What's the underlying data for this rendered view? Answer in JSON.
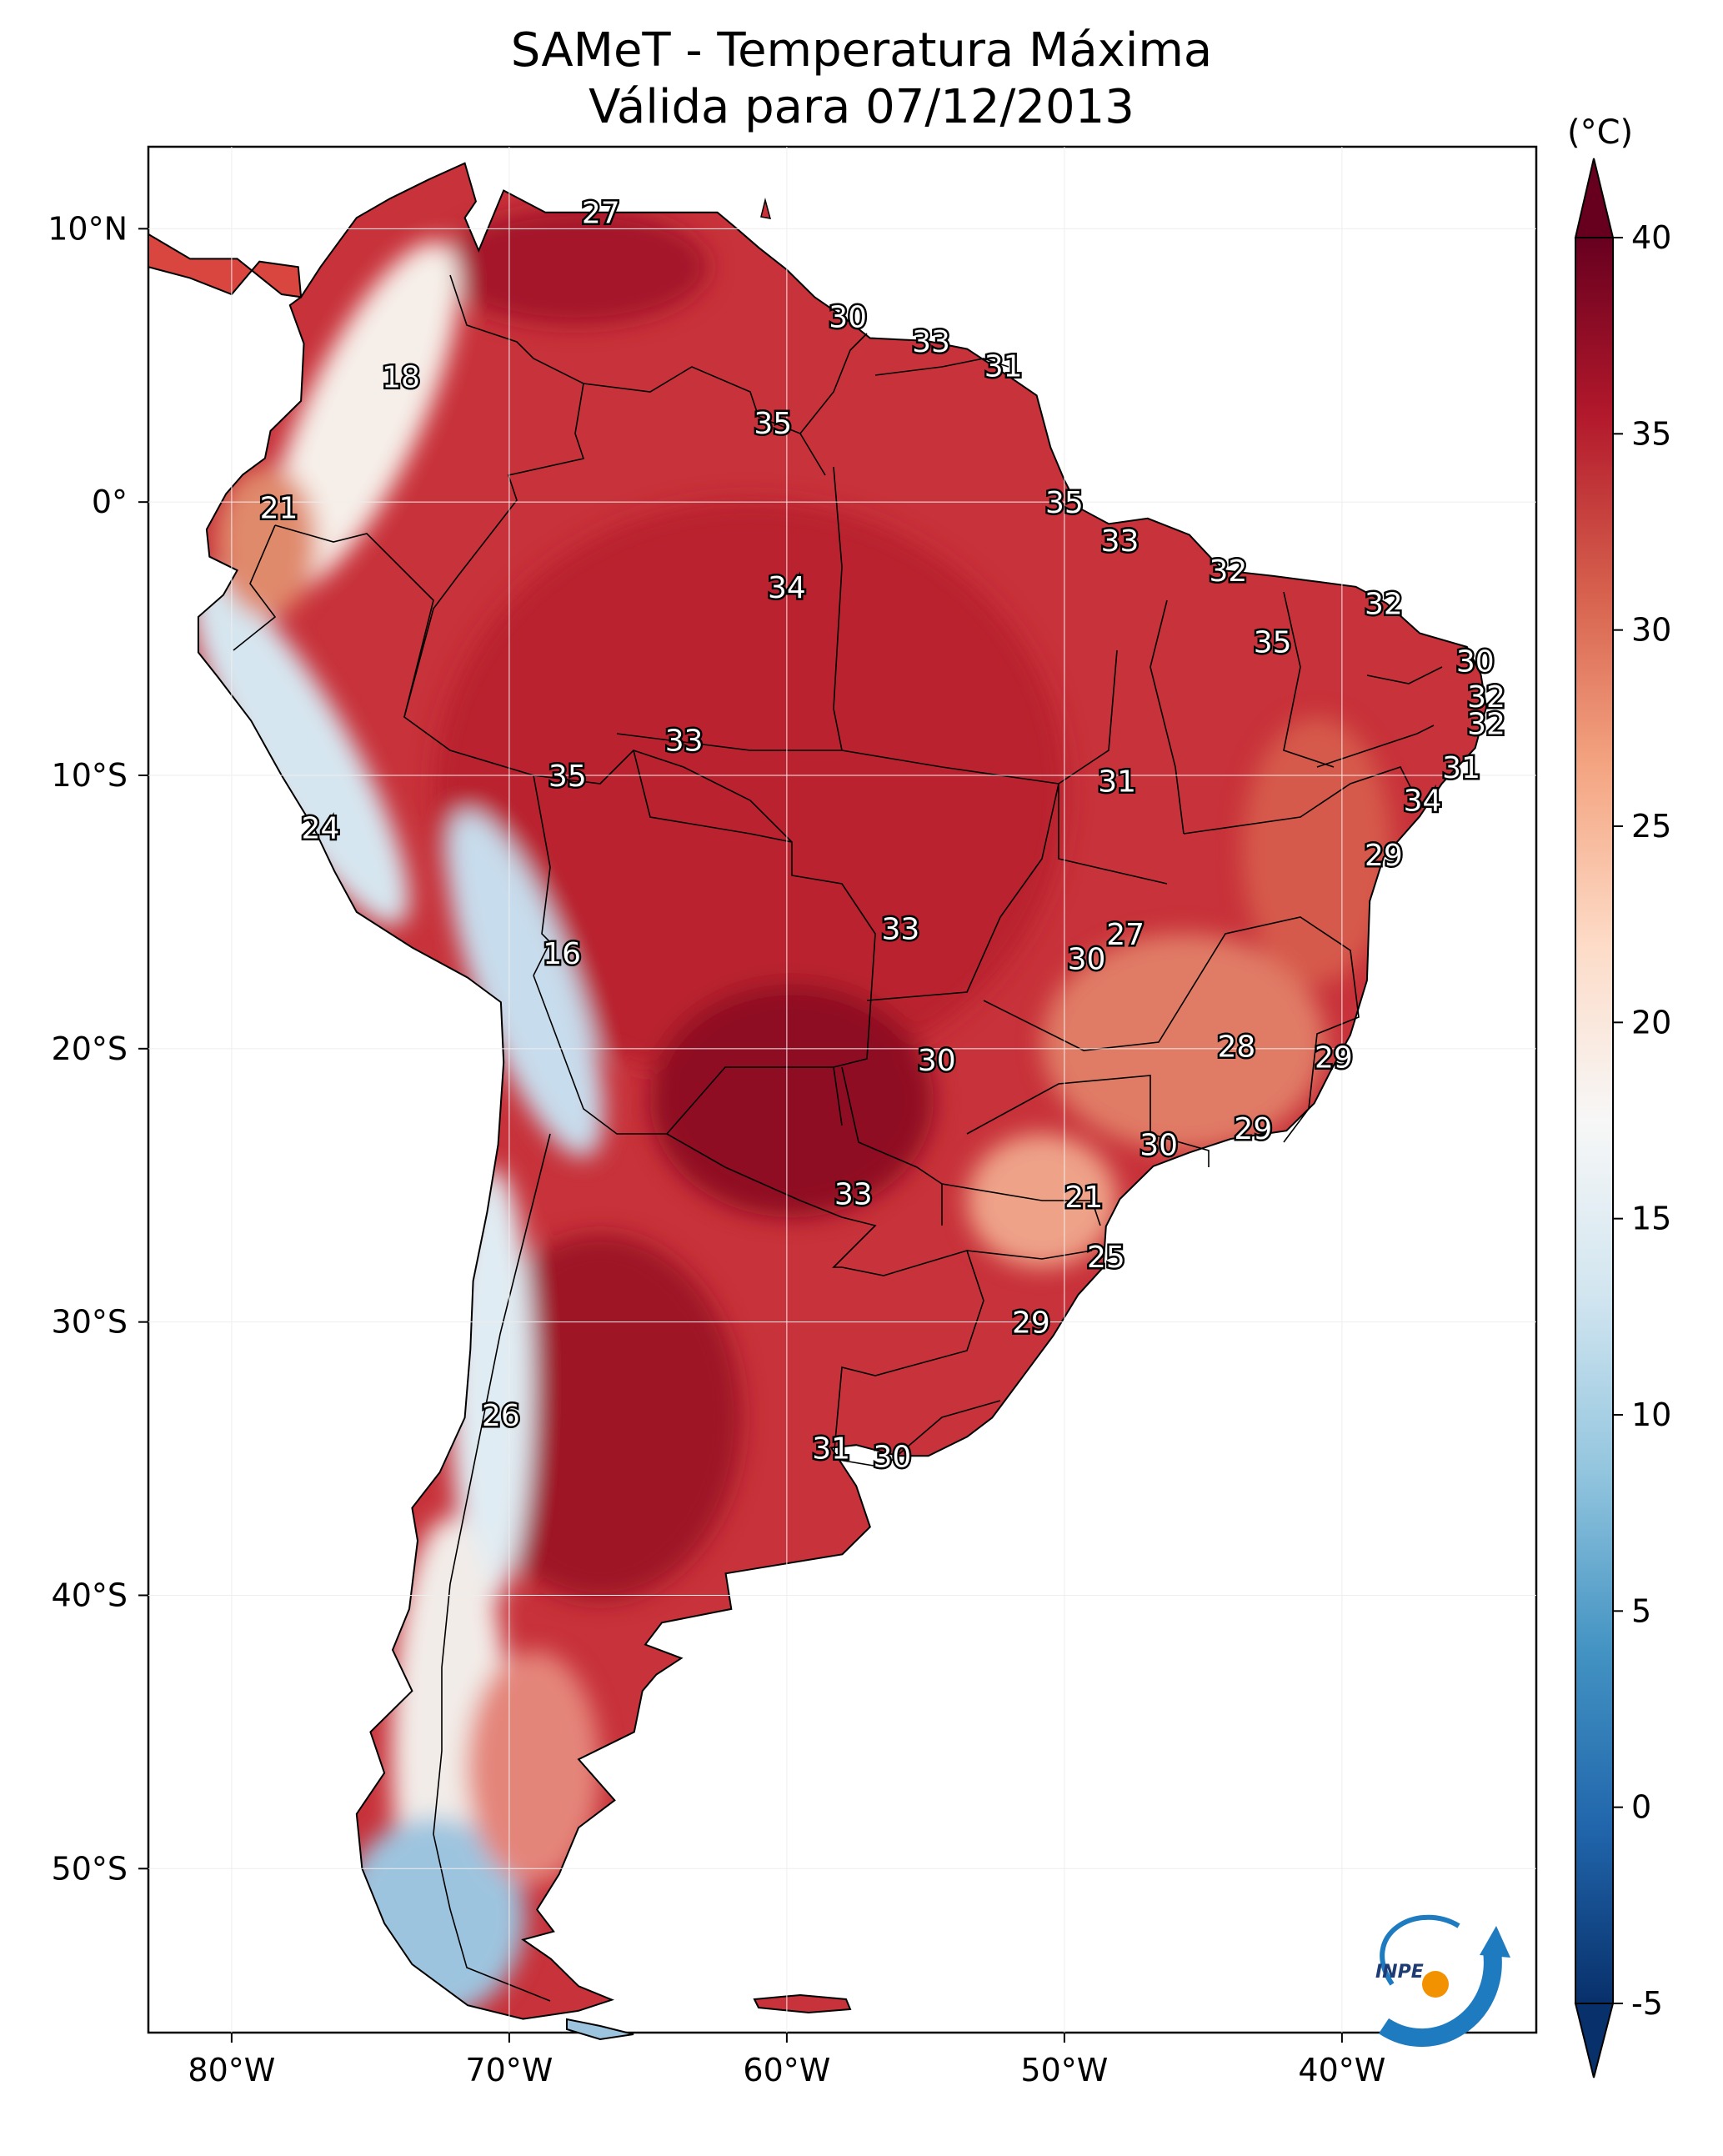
{
  "title": {
    "line1": "SAMeT - Temperatura Máxima",
    "line2": "Válida para 07/12/2013"
  },
  "colorbar": {
    "unit": "(°C)",
    "min": -5,
    "max": 40,
    "ticks": [
      -5,
      0,
      5,
      10,
      15,
      20,
      25,
      30,
      35,
      40
    ],
    "colors": [
      "#08306b",
      "#2166ac",
      "#4393c3",
      "#92c5de",
      "#d1e5f0",
      "#f7f7f7",
      "#fddbc7",
      "#f4a582",
      "#d6604d",
      "#b2182b",
      "#67001f"
    ]
  },
  "axes": {
    "lon_range": [
      -83,
      -33
    ],
    "lat_range": [
      -56,
      13
    ],
    "x_ticks": [
      {
        "value": -80,
        "label": "80°W"
      },
      {
        "value": -70,
        "label": "70°W"
      },
      {
        "value": -60,
        "label": "60°W"
      },
      {
        "value": -50,
        "label": "50°W"
      },
      {
        "value": -40,
        "label": "40°W"
      }
    ],
    "y_ticks": [
      {
        "value": 10,
        "label": "10°N"
      },
      {
        "value": 0,
        "label": "0°"
      },
      {
        "value": -10,
        "label": "10°S"
      },
      {
        "value": -20,
        "label": "20°S"
      },
      {
        "value": -30,
        "label": "30°S"
      },
      {
        "value": -40,
        "label": "40°S"
      },
      {
        "value": -50,
        "label": "50°S"
      }
    ]
  },
  "station_labels": [
    {
      "text": "27",
      "lon": -66.7,
      "lat": 10.6
    },
    {
      "text": "30",
      "lon": -57.8,
      "lat": 6.8
    },
    {
      "text": "33",
      "lon": -54.8,
      "lat": 5.9
    },
    {
      "text": "31",
      "lon": -52.2,
      "lat": 5.0
    },
    {
      "text": "18",
      "lon": -73.9,
      "lat": 4.6
    },
    {
      "text": "35",
      "lon": -60.5,
      "lat": 2.9
    },
    {
      "text": "35",
      "lon": -50.0,
      "lat": 0.0
    },
    {
      "text": "21",
      "lon": -78.3,
      "lat": -0.2
    },
    {
      "text": "33",
      "lon": -48.0,
      "lat": -1.4
    },
    {
      "text": "32",
      "lon": -44.1,
      "lat": -2.5
    },
    {
      "text": "34",
      "lon": -60.0,
      "lat": -3.1
    },
    {
      "text": "32",
      "lon": -38.5,
      "lat": -3.7
    },
    {
      "text": "35",
      "lon": -42.5,
      "lat": -5.1
    },
    {
      "text": "30",
      "lon": -35.2,
      "lat": -5.8
    },
    {
      "text": "32",
      "lon": -34.8,
      "lat": -7.1
    },
    {
      "text": "32",
      "lon": -34.8,
      "lat": -8.1
    },
    {
      "text": "33",
      "lon": -63.7,
      "lat": -8.7
    },
    {
      "text": "31",
      "lon": -35.7,
      "lat": -9.7
    },
    {
      "text": "35",
      "lon": -67.9,
      "lat": -10.0
    },
    {
      "text": "31",
      "lon": -48.1,
      "lat": -10.2
    },
    {
      "text": "34",
      "lon": -37.1,
      "lat": -10.9
    },
    {
      "text": "24",
      "lon": -76.8,
      "lat": -11.9
    },
    {
      "text": "29",
      "lon": -38.5,
      "lat": -12.9
    },
    {
      "text": "33",
      "lon": -55.9,
      "lat": -15.6
    },
    {
      "text": "27",
      "lon": -47.8,
      "lat": -15.8
    },
    {
      "text": "30",
      "lon": -49.2,
      "lat": -16.7
    },
    {
      "text": "16",
      "lon": -68.1,
      "lat": -16.5
    },
    {
      "text": "28",
      "lon": -43.8,
      "lat": -19.9
    },
    {
      "text": "29",
      "lon": -40.3,
      "lat": -20.3
    },
    {
      "text": "30",
      "lon": -54.6,
      "lat": -20.4
    },
    {
      "text": "29",
      "lon": -43.2,
      "lat": -22.9
    },
    {
      "text": "30",
      "lon": -46.6,
      "lat": -23.5
    },
    {
      "text": "21",
      "lon": -49.3,
      "lat": -25.4
    },
    {
      "text": "33",
      "lon": -57.6,
      "lat": -25.3
    },
    {
      "text": "25",
      "lon": -48.5,
      "lat": -27.6
    },
    {
      "text": "29",
      "lon": -51.2,
      "lat": -30.0
    },
    {
      "text": "26",
      "lon": -70.3,
      "lat": -33.4
    },
    {
      "text": "31",
      "lon": -58.4,
      "lat": -34.6
    },
    {
      "text": "30",
      "lon": -56.2,
      "lat": -34.9
    }
  ],
  "logo": {
    "text": "INPE"
  }
}
